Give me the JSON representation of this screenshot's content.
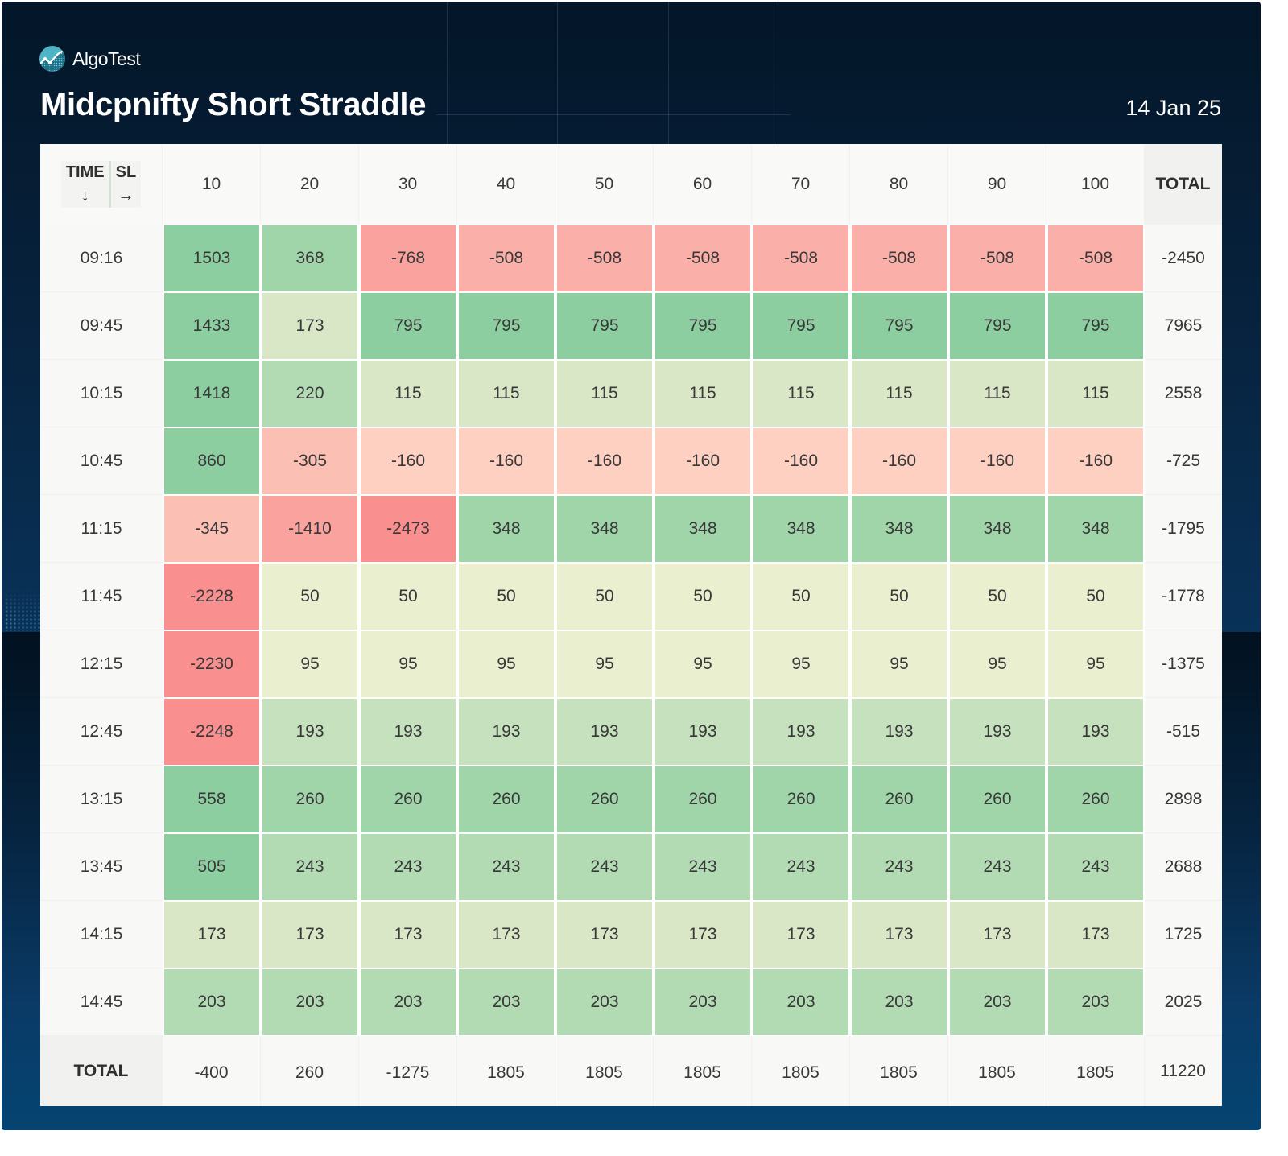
{
  "brand": {
    "name": "AlgoTest",
    "logo_icon": "algotest-chart-logo-icon"
  },
  "title": "Midcpnifty Short Straddle",
  "date": "14 Jan 25",
  "colors": {
    "neg_strong": "#f98f8f",
    "neg_mid": "#f9a29e",
    "neg_light": "#faafa8",
    "neg_lighter": "#fbbfb4",
    "neg_faint": "#fdd0c1",
    "pos_strong": "#8dcea0",
    "pos_mid": "#a0d5aa",
    "pos_light": "#b2dbb3",
    "pos_lighter": "#c5e1bd",
    "pos_faint": "#d9e7c7",
    "pos_faintest": "#eaefd0"
  },
  "chart_data": {
    "type": "heatmap",
    "title": "Midcpnifty Short Straddle",
    "subtitle": "14 Jan 25",
    "corner": {
      "row_axis_label": "TIME",
      "row_axis_arrow": "↓",
      "col_axis_label": "SL",
      "col_axis_arrow": "→"
    },
    "xlabel": "SL",
    "ylabel": "TIME",
    "x": [
      "10",
      "20",
      "30",
      "40",
      "50",
      "60",
      "70",
      "80",
      "90",
      "100"
    ],
    "y": [
      "09:16",
      "09:45",
      "10:15",
      "10:45",
      "11:15",
      "11:45",
      "12:15",
      "12:45",
      "13:15",
      "13:45",
      "14:15",
      "14:45"
    ],
    "total_label": "TOTAL",
    "values": [
      [
        1503,
        368,
        -768,
        -508,
        -508,
        -508,
        -508,
        -508,
        -508,
        -508
      ],
      [
        1433,
        173,
        795,
        795,
        795,
        795,
        795,
        795,
        795,
        795
      ],
      [
        1418,
        220,
        115,
        115,
        115,
        115,
        115,
        115,
        115,
        115
      ],
      [
        860,
        -305,
        -160,
        -160,
        -160,
        -160,
        -160,
        -160,
        -160,
        -160
      ],
      [
        -345,
        -1410,
        -2473,
        348,
        348,
        348,
        348,
        348,
        348,
        348
      ],
      [
        -2228,
        50,
        50,
        50,
        50,
        50,
        50,
        50,
        50,
        50
      ],
      [
        -2230,
        95,
        95,
        95,
        95,
        95,
        95,
        95,
        95,
        95
      ],
      [
        -2248,
        193,
        193,
        193,
        193,
        193,
        193,
        193,
        193,
        193
      ],
      [
        558,
        260,
        260,
        260,
        260,
        260,
        260,
        260,
        260,
        260
      ],
      [
        505,
        243,
        243,
        243,
        243,
        243,
        243,
        243,
        243,
        243
      ],
      [
        173,
        173,
        173,
        173,
        173,
        173,
        173,
        173,
        173,
        173
      ],
      [
        203,
        203,
        203,
        203,
        203,
        203,
        203,
        203,
        203,
        203
      ]
    ],
    "row_totals": [
      -2450,
      7965,
      2558,
      -725,
      -1795,
      -1778,
      -1375,
      -515,
      2898,
      2688,
      1725,
      2025
    ],
    "col_totals": [
      -400,
      260,
      -1275,
      1805,
      1805,
      1805,
      1805,
      1805,
      1805,
      1805
    ],
    "grand_total": 11220
  }
}
